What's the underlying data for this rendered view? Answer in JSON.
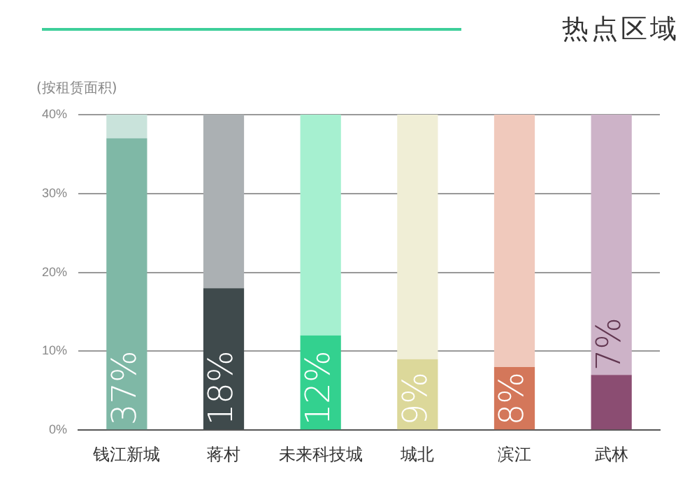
{
  "chart_data": {
    "type": "bar",
    "title": "热点区域",
    "ylabel": "(按租赁面积)",
    "stacked": true,
    "categories": [
      "钱江新城",
      "蒋村",
      "未来科技城",
      "城北",
      "滨江",
      "武林"
    ],
    "series": [
      {
        "colors": [
          "#7fb8a6",
          "#3f4a4c",
          "#33d18f",
          "#dcd89a",
          "#d4775a",
          "#8b4d72"
        ],
        "values": [
          37,
          18,
          12,
          9,
          8,
          7
        ],
        "value_labels": [
          "37%",
          "18%",
          "12%",
          "9%",
          "8%",
          "7%"
        ]
      },
      {
        "colors": [
          "#c9e3db",
          "#abb0b3",
          "#a6f0d0",
          "#f0eed6",
          "#f0c9bc",
          "#cdb3c8"
        ],
        "values": [
          3,
          22,
          28,
          31,
          32,
          33
        ]
      }
    ],
    "ylim": [
      0,
      40
    ],
    "yticks": [
      {
        "value": 0,
        "label": "0%"
      },
      {
        "value": 10,
        "label": "10%"
      },
      {
        "value": 20,
        "label": "20%"
      },
      {
        "value": 30,
        "label": "30%"
      },
      {
        "value": 40,
        "label": "40%"
      }
    ],
    "grid": "y",
    "legend": false
  }
}
